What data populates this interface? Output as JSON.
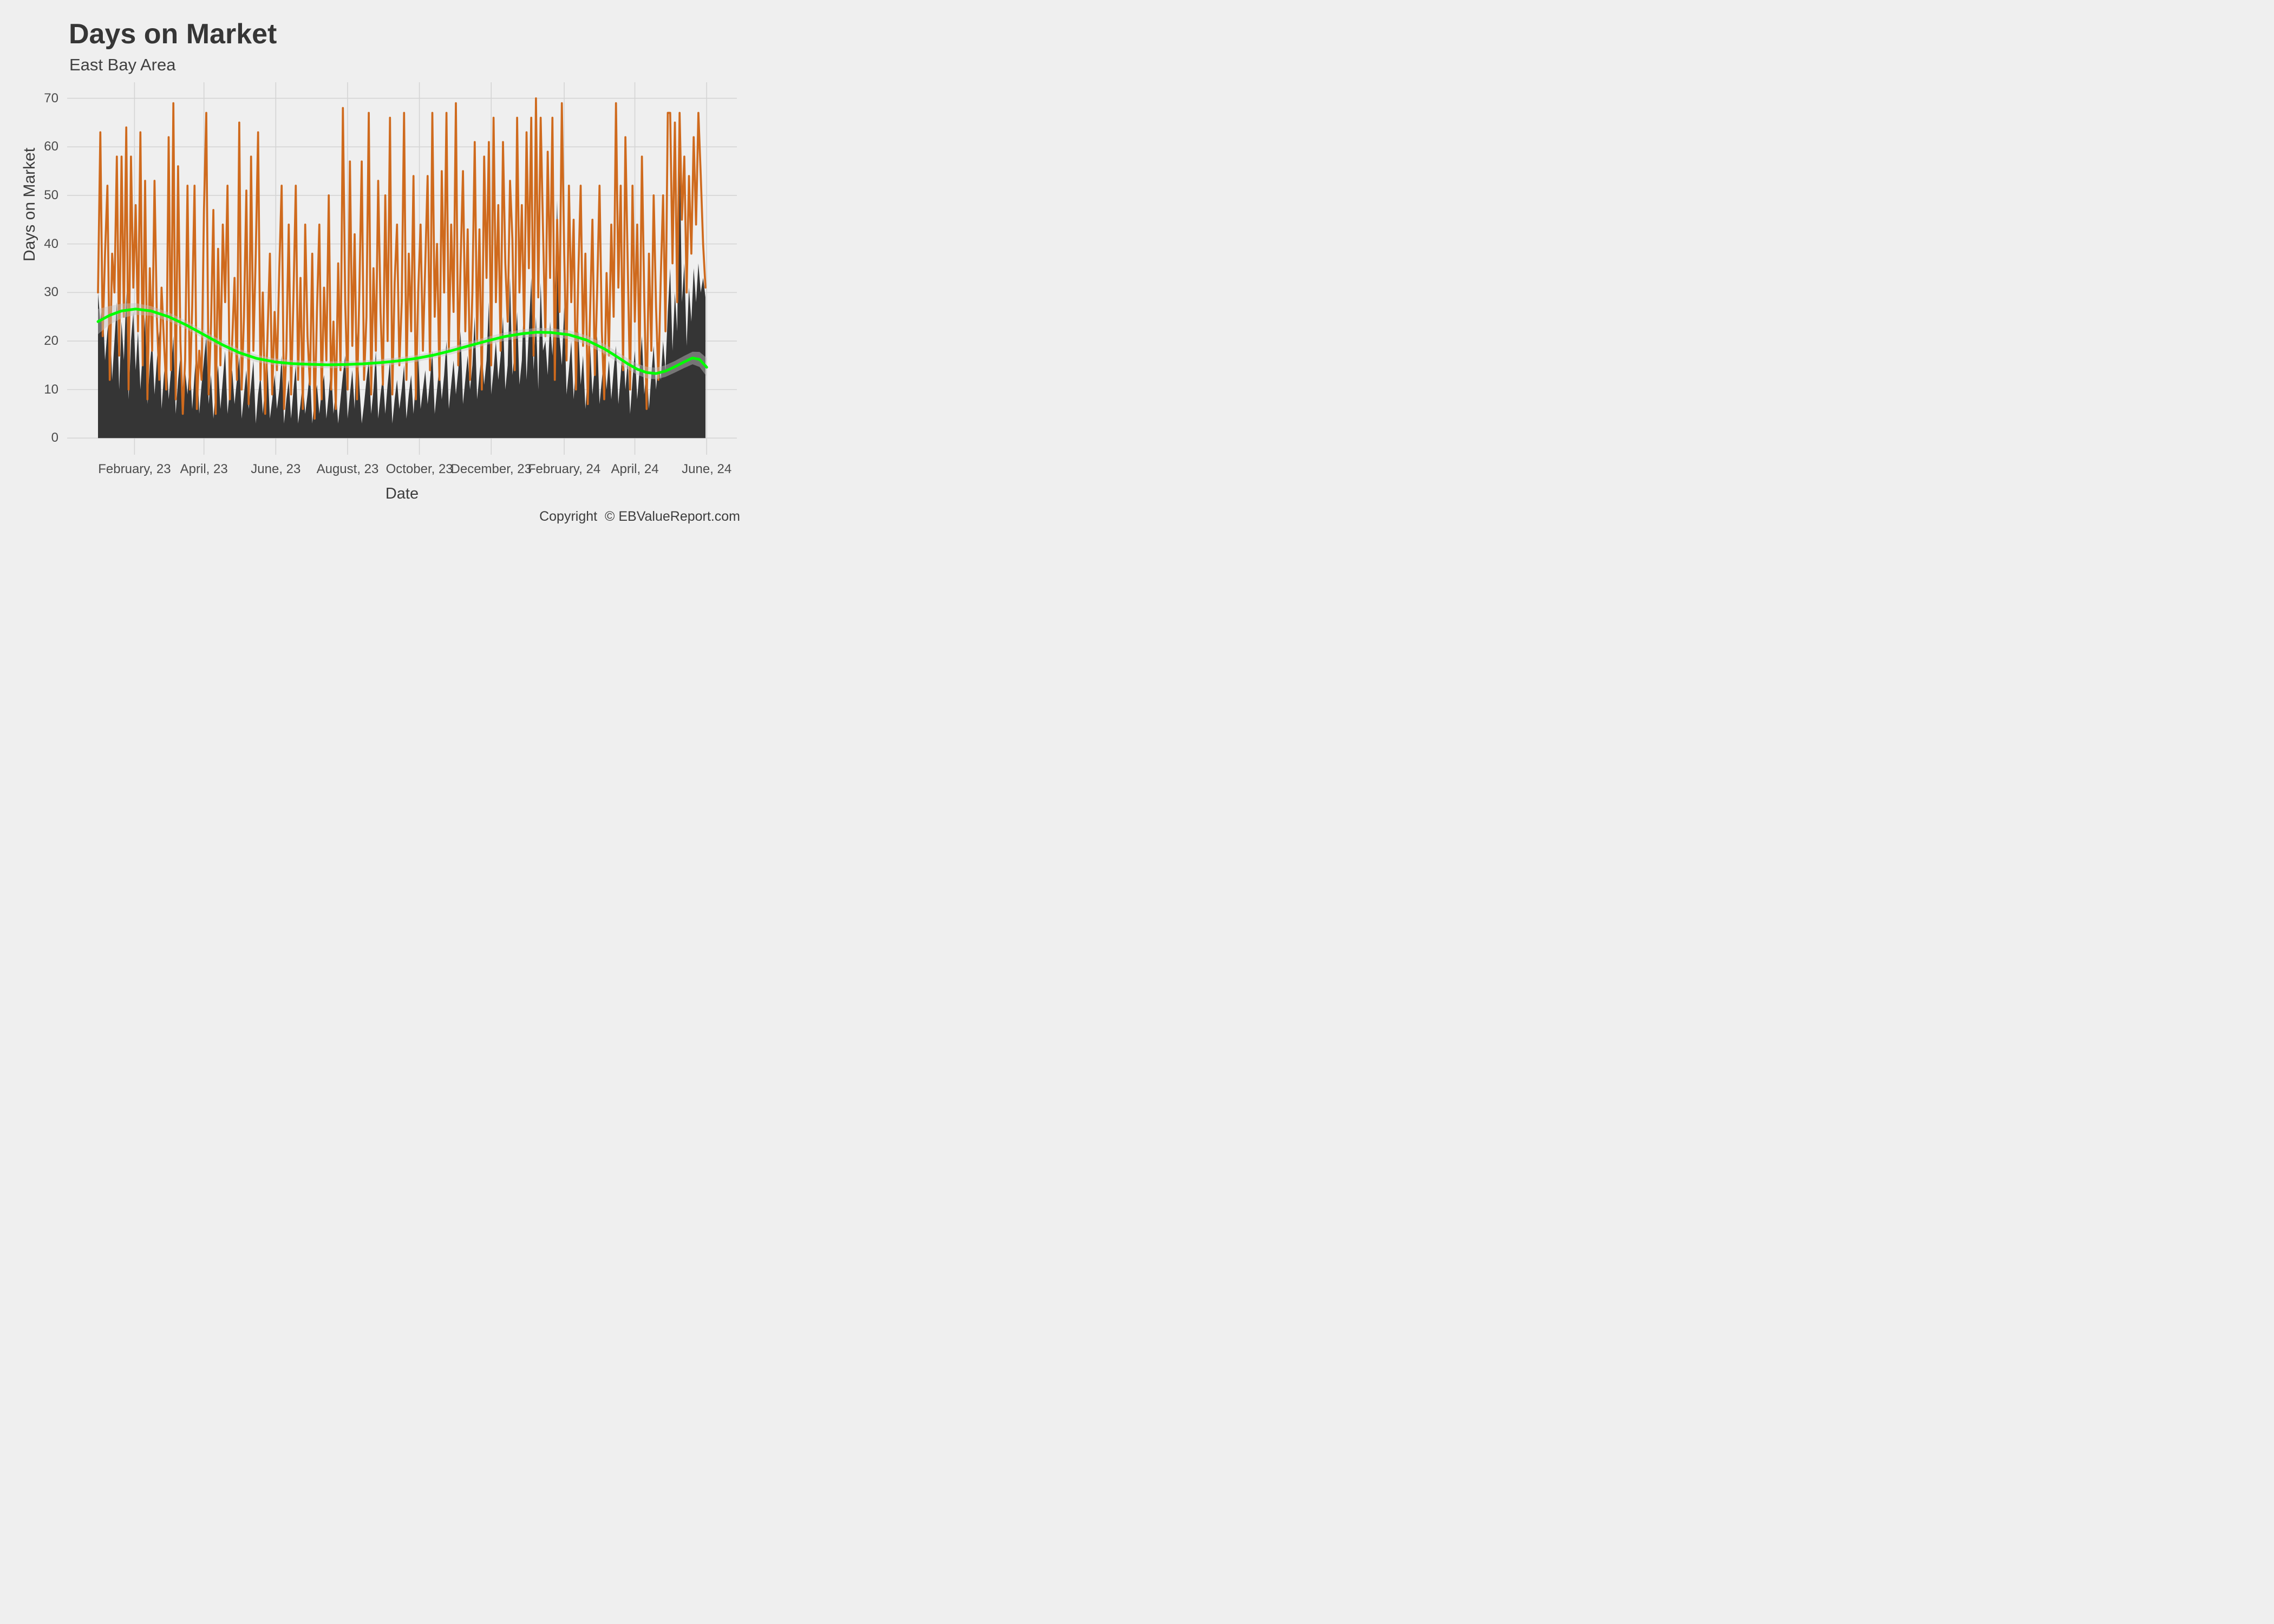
{
  "header": {
    "title": "Days on Market",
    "subtitle": "East Bay Area"
  },
  "caption": "Copyright  © EBValueReport.com",
  "colors": {
    "background": "#EFEFEF",
    "gridline": "#D4D4D4",
    "daily_line": "#CF6A1D",
    "median_area": "#353535",
    "trend_line": "#00FF00",
    "confidence_band": "rgba(195,195,195,0.45)",
    "title_text": "#363636",
    "tick_text": "#4C4C4C"
  },
  "chart_data": {
    "type": "line",
    "title": "Days on Market",
    "subtitle": "East Bay Area",
    "xlabel": "Date",
    "ylabel": "Days on Market",
    "grid": true,
    "legend": false,
    "ylim": [
      -4,
      73.6
    ],
    "y_ticks": [
      0,
      10,
      20,
      30,
      40,
      50,
      60,
      70
    ],
    "x_start_date": "2023-01-01",
    "x_end_date": "2024-06-01",
    "x_step_days": 2,
    "x_ticks": [
      {
        "label": "February, 23",
        "day": 31
      },
      {
        "label": "April, 23",
        "day": 90
      },
      {
        "label": "June, 23",
        "day": 151
      },
      {
        "label": "August, 23",
        "day": 212
      },
      {
        "label": "October, 23",
        "day": 273
      },
      {
        "label": "December, 23",
        "day": 334
      },
      {
        "label": "February, 24",
        "day": 396
      },
      {
        "label": "April, 24",
        "day": 456
      },
      {
        "label": "June, 24",
        "day": 517
      }
    ],
    "series": [
      {
        "name": "daily-days-on-market",
        "style": "spiky-line",
        "color": "#CF6A1D",
        "values": [
          30,
          63,
          21,
          38,
          52,
          12,
          38,
          30,
          58,
          17,
          58,
          25,
          64,
          10,
          58,
          31,
          48,
          22,
          63,
          15,
          53,
          8,
          35,
          18,
          53,
          25,
          12,
          31,
          20,
          10,
          62,
          14,
          69,
          8,
          56,
          20,
          5,
          16,
          52,
          10,
          27,
          52,
          6,
          18,
          12,
          47,
          67,
          9,
          23,
          47,
          5,
          39,
          15,
          44,
          28,
          52,
          8,
          20,
          33,
          12,
          65,
          10,
          25,
          51,
          7,
          58,
          18,
          38,
          63,
          12,
          30,
          5,
          21,
          38,
          9,
          26,
          14,
          35,
          52,
          6,
          18,
          44,
          9,
          29,
          52,
          12,
          33,
          6,
          44,
          21,
          11,
          38,
          4,
          26,
          44,
          8,
          31,
          16,
          50,
          10,
          24,
          6,
          36,
          14,
          68,
          28,
          10,
          57,
          19,
          42,
          8,
          30,
          57,
          12,
          25,
          67,
          9,
          35,
          18,
          53,
          26,
          11,
          50,
          20,
          66,
          9,
          32,
          44,
          15,
          28,
          67,
          12,
          38,
          22,
          54,
          8,
          30,
          44,
          18,
          36,
          54,
          14,
          67,
          25,
          40,
          12,
          55,
          30,
          67,
          18,
          44,
          26,
          69,
          15,
          36,
          55,
          22,
          43,
          12,
          30,
          61,
          20,
          43,
          10,
          58,
          33,
          61,
          15,
          66,
          28,
          48,
          18,
          61,
          36,
          24,
          53,
          41,
          14,
          66,
          30,
          48,
          22,
          63,
          35,
          66,
          17,
          70,
          29,
          66,
          43,
          21,
          59,
          33,
          66,
          12,
          45,
          26,
          69,
          38,
          16,
          52,
          28,
          45,
          10,
          34,
          52,
          19,
          38,
          7,
          26,
          45,
          13,
          30,
          52,
          22,
          8,
          34,
          17,
          44,
          25,
          69,
          31,
          52,
          14,
          62,
          35,
          10,
          52,
          24,
          44,
          15,
          58,
          29,
          6,
          38,
          18,
          50,
          27,
          12,
          33,
          50,
          22,
          67,
          67,
          36,
          65,
          28,
          67,
          45,
          58,
          30,
          54,
          38,
          62,
          44,
          67,
          54,
          40,
          31
        ]
      },
      {
        "name": "median-days-on-market",
        "style": "area",
        "color": "#353535",
        "values": [
          30,
          24,
          28,
          16,
          22,
          26,
          12,
          20,
          28,
          10,
          24,
          16,
          30,
          8,
          20,
          26,
          14,
          22,
          10,
          18,
          25,
          7,
          15,
          20,
          9,
          16,
          22,
          6,
          13,
          18,
          8,
          14,
          21,
          5,
          12,
          17,
          7,
          14,
          9,
          16,
          6,
          13,
          19,
          5,
          11,
          16,
          21,
          7,
          13,
          4,
          10,
          15,
          6,
          12,
          18,
          5,
          10,
          14,
          7,
          12,
          17,
          4,
          9,
          14,
          6,
          11,
          16,
          3,
          9,
          13,
          5,
          11,
          15,
          4,
          8,
          13,
          6,
          10,
          17,
          3,
          8,
          12,
          4,
          10,
          15,
          3,
          7,
          12,
          5,
          9,
          14,
          3,
          8,
          11,
          5,
          10,
          13,
          4,
          9,
          15,
          5,
          10,
          3,
          8,
          13,
          17,
          4,
          9,
          14,
          6,
          22,
          11,
          3,
          7,
          12,
          16,
          5,
          10,
          18,
          4,
          9,
          13,
          5,
          11,
          16,
          3,
          8,
          12,
          6,
          10,
          15,
          4,
          9,
          13,
          5,
          12,
          17,
          6,
          10,
          14,
          7,
          12,
          18,
          5,
          10,
          15,
          8,
          13,
          20,
          6,
          11,
          16,
          9,
          14,
          22,
          7,
          12,
          17,
          10,
          15,
          25,
          8,
          13,
          18,
          11,
          16,
          28,
          9,
          14,
          20,
          12,
          17,
          25,
          10,
          15,
          33,
          13,
          18,
          26,
          11,
          16,
          30,
          12,
          22,
          33,
          14,
          25,
          10,
          32,
          18,
          20,
          13,
          24,
          17,
          30,
          49,
          21,
          15,
          27,
          9,
          14,
          20,
          8,
          15,
          22,
          11,
          17,
          6,
          13,
          19,
          9,
          15,
          21,
          7,
          12,
          18,
          10,
          16,
          8,
          14,
          19,
          7,
          13,
          20,
          10,
          16,
          5,
          12,
          18,
          8,
          14,
          21,
          9,
          15,
          6,
          13,
          19,
          10,
          16,
          12,
          20,
          14,
          26,
          35,
          18,
          30,
          22,
          62,
          28,
          36,
          19,
          31,
          24,
          35,
          28,
          36,
          30,
          33,
          29
        ]
      },
      {
        "name": "trend-loess",
        "style": "smooth-line-with-band",
        "color": "#00FF00",
        "band_color": "rgba(195,195,195,0.45)",
        "days": [
          0,
          10,
          20,
          32,
          45,
          60,
          75,
          90,
          105,
          120,
          135,
          150,
          165,
          180,
          195,
          210,
          225,
          240,
          255,
          270,
          285,
          300,
          315,
          330,
          345,
          360,
          372,
          385,
          400,
          415,
          430,
          440,
          450,
          458,
          466,
          474,
          482,
          490,
          498,
          505,
          511,
          517
        ],
        "values": [
          24.0,
          25.3,
          26.2,
          26.6,
          26.2,
          25.0,
          23.3,
          21.3,
          19.3,
          17.6,
          16.4,
          15.7,
          15.35,
          15.2,
          15.1,
          15.15,
          15.3,
          15.55,
          15.9,
          16.4,
          17.1,
          18.0,
          19.0,
          20.0,
          20.9,
          21.5,
          21.8,
          21.75,
          21.3,
          20.2,
          18.4,
          16.9,
          15.3,
          14.2,
          13.5,
          13.3,
          13.8,
          14.7,
          15.7,
          16.5,
          16.2,
          14.6
        ],
        "band_halfwidth": [
          2.6,
          1.9,
          1.5,
          1.2,
          1.0,
          0.9,
          0.85,
          0.8,
          0.8,
          0.75,
          0.75,
          0.7,
          0.7,
          0.7,
          0.7,
          0.7,
          0.7,
          0.7,
          0.7,
          0.7,
          0.7,
          0.75,
          0.8,
          0.8,
          0.85,
          0.85,
          0.9,
          0.9,
          0.9,
          0.95,
          1.0,
          1.05,
          1.1,
          1.15,
          1.2,
          1.2,
          1.2,
          1.2,
          1.25,
          1.3,
          1.55,
          1.9
        ]
      }
    ]
  }
}
